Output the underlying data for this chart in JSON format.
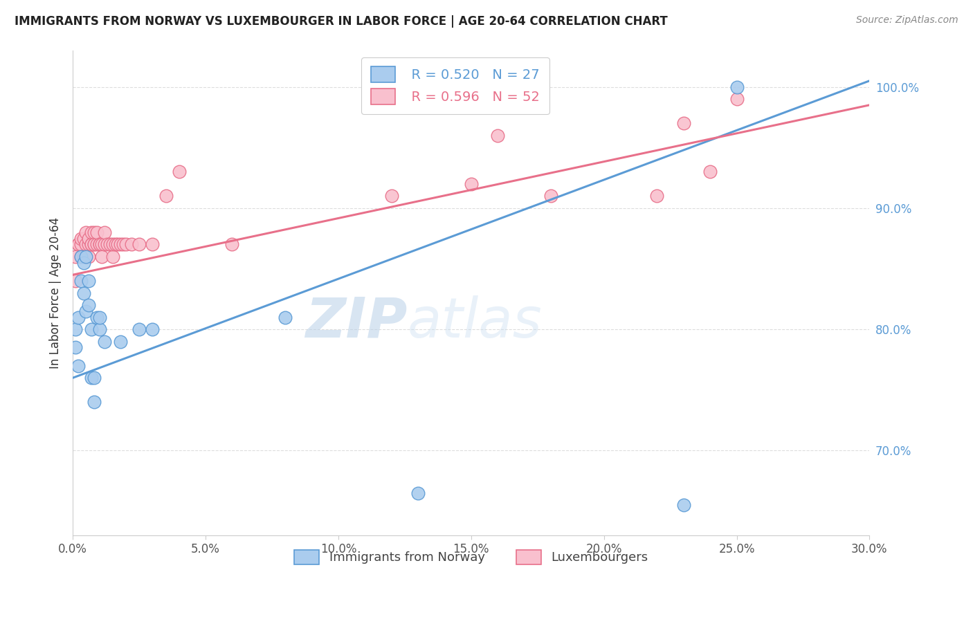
{
  "title": "IMMIGRANTS FROM NORWAY VS LUXEMBOURGER IN LABOR FORCE | AGE 20-64 CORRELATION CHART",
  "source": "Source: ZipAtlas.com",
  "ylabel": "In Labor Force | Age 20-64",
  "xmin": 0.0,
  "xmax": 0.3,
  "ymin": 0.63,
  "ymax": 1.03,
  "yticks": [
    0.7,
    0.8,
    0.9,
    1.0
  ],
  "ytick_labels": [
    "70.0%",
    "80.0%",
    "90.0%",
    "100.0%"
  ],
  "xticks": [
    0.0,
    0.05,
    0.1,
    0.15,
    0.2,
    0.25,
    0.3
  ],
  "xtick_labels": [
    "0.0%",
    "5.0%",
    "10.0%",
    "15.0%",
    "20.0%",
    "25.0%",
    "30.0%"
  ],
  "legend_r_norway": "R = 0.520",
  "legend_n_norway": "N = 27",
  "legend_r_lux": "R = 0.596",
  "legend_n_lux": "N = 52",
  "watermark_zip": "ZIP",
  "watermark_atlas": "atlas",
  "norway_color": "#aaccee",
  "norway_color_dark": "#5b9bd5",
  "lux_color": "#f9c0ce",
  "lux_color_dark": "#e8708a",
  "norway_x": [
    0.001,
    0.001,
    0.002,
    0.002,
    0.003,
    0.003,
    0.004,
    0.004,
    0.005,
    0.005,
    0.006,
    0.006,
    0.007,
    0.007,
    0.008,
    0.008,
    0.009,
    0.01,
    0.01,
    0.012,
    0.018,
    0.025,
    0.03,
    0.08,
    0.13,
    0.23,
    0.25
  ],
  "norway_y": [
    0.8,
    0.785,
    0.77,
    0.81,
    0.84,
    0.86,
    0.855,
    0.83,
    0.86,
    0.815,
    0.84,
    0.82,
    0.76,
    0.8,
    0.76,
    0.74,
    0.81,
    0.8,
    0.81,
    0.79,
    0.79,
    0.8,
    0.8,
    0.81,
    0.665,
    0.655,
    1.0
  ],
  "lux_x": [
    0.001,
    0.001,
    0.002,
    0.002,
    0.003,
    0.003,
    0.003,
    0.004,
    0.004,
    0.005,
    0.005,
    0.005,
    0.006,
    0.006,
    0.006,
    0.007,
    0.007,
    0.007,
    0.008,
    0.008,
    0.008,
    0.009,
    0.009,
    0.01,
    0.01,
    0.011,
    0.011,
    0.012,
    0.012,
    0.013,
    0.014,
    0.015,
    0.015,
    0.016,
    0.017,
    0.018,
    0.019,
    0.02,
    0.022,
    0.025,
    0.03,
    0.035,
    0.04,
    0.06,
    0.12,
    0.15,
    0.16,
    0.18,
    0.22,
    0.23,
    0.24,
    0.25
  ],
  "lux_y": [
    0.84,
    0.86,
    0.87,
    0.87,
    0.87,
    0.875,
    0.86,
    0.86,
    0.875,
    0.87,
    0.86,
    0.88,
    0.86,
    0.87,
    0.875,
    0.87,
    0.87,
    0.88,
    0.87,
    0.88,
    0.87,
    0.87,
    0.88,
    0.87,
    0.87,
    0.87,
    0.86,
    0.87,
    0.88,
    0.87,
    0.87,
    0.86,
    0.87,
    0.87,
    0.87,
    0.87,
    0.87,
    0.87,
    0.87,
    0.87,
    0.87,
    0.91,
    0.93,
    0.87,
    0.91,
    0.92,
    0.96,
    0.91,
    0.91,
    0.97,
    0.93,
    0.99
  ],
  "norway_line_x": [
    0.0,
    0.3
  ],
  "norway_line_y": [
    0.76,
    1.005
  ],
  "lux_line_x": [
    0.0,
    0.3
  ],
  "lux_line_y": [
    0.845,
    0.985
  ],
  "grid_color": "#dddddd",
  "spine_color": "#cccccc",
  "title_fontsize": 12,
  "tick_fontsize": 12,
  "ylabel_fontsize": 12,
  "legend_fontsize": 14,
  "source_fontsize": 10
}
